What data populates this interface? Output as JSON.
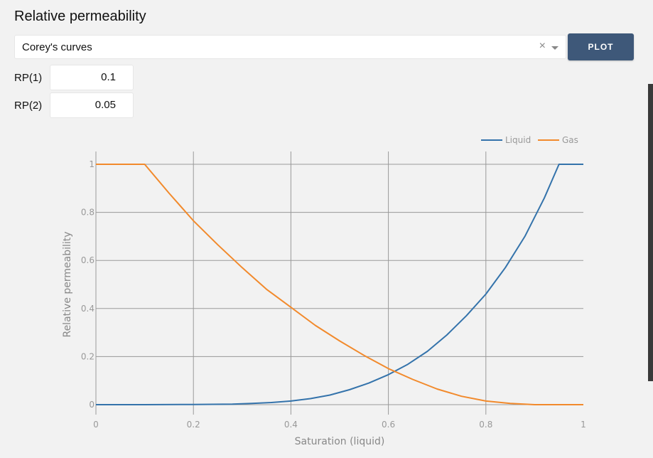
{
  "page": {
    "title": "Relative permeability"
  },
  "selector": {
    "value": "Corey's curves",
    "clear_glyph": "×"
  },
  "plot_button": {
    "label": "PLOT"
  },
  "params": [
    {
      "label": "RP(1)",
      "value": "0.1"
    },
    {
      "label": "RP(2)",
      "value": "0.05"
    }
  ],
  "chart_data": {
    "type": "line",
    "xlabel": "Saturation (liquid)",
    "ylabel": "Relative permeability",
    "xlim": [
      0,
      1
    ],
    "ylim": [
      0,
      1
    ],
    "x_ticks": [
      0,
      0.2,
      0.4,
      0.6,
      0.8,
      1
    ],
    "x_tick_labels": [
      "0",
      "0.2",
      "0.4",
      "0.6",
      "0.8",
      "1"
    ],
    "y_ticks": [
      0,
      0.2,
      0.4,
      0.6,
      0.8,
      1
    ],
    "y_tick_labels": [
      "0",
      "0.2",
      "0.4",
      "0.6",
      "0.8",
      "1"
    ],
    "grid": true,
    "legend_position": "top-right",
    "series": [
      {
        "name": "Liquid",
        "color": "#3473ab",
        "x": [
          0,
          0.1,
          0.2,
          0.28,
          0.32,
          0.36,
          0.4,
          0.44,
          0.48,
          0.52,
          0.56,
          0.6,
          0.64,
          0.68,
          0.72,
          0.76,
          0.8,
          0.84,
          0.88,
          0.92,
          0.95,
          1
        ],
        "y": [
          0,
          0,
          0.001,
          0.002,
          0.005,
          0.009,
          0.015,
          0.025,
          0.04,
          0.062,
          0.09,
          0.125,
          0.168,
          0.222,
          0.29,
          0.37,
          0.46,
          0.57,
          0.7,
          0.86,
          1,
          1
        ]
      },
      {
        "name": "Gas",
        "color": "#f28a2c",
        "x": [
          0,
          0.1,
          0.15,
          0.2,
          0.25,
          0.3,
          0.35,
          0.4,
          0.45,
          0.5,
          0.55,
          0.6,
          0.65,
          0.7,
          0.75,
          0.8,
          0.85,
          0.9,
          1
        ],
        "y": [
          1,
          1,
          0.88,
          0.765,
          0.665,
          0.57,
          0.48,
          0.405,
          0.33,
          0.265,
          0.205,
          0.15,
          0.105,
          0.065,
          0.035,
          0.015,
          0.005,
          0,
          0
        ]
      }
    ]
  }
}
